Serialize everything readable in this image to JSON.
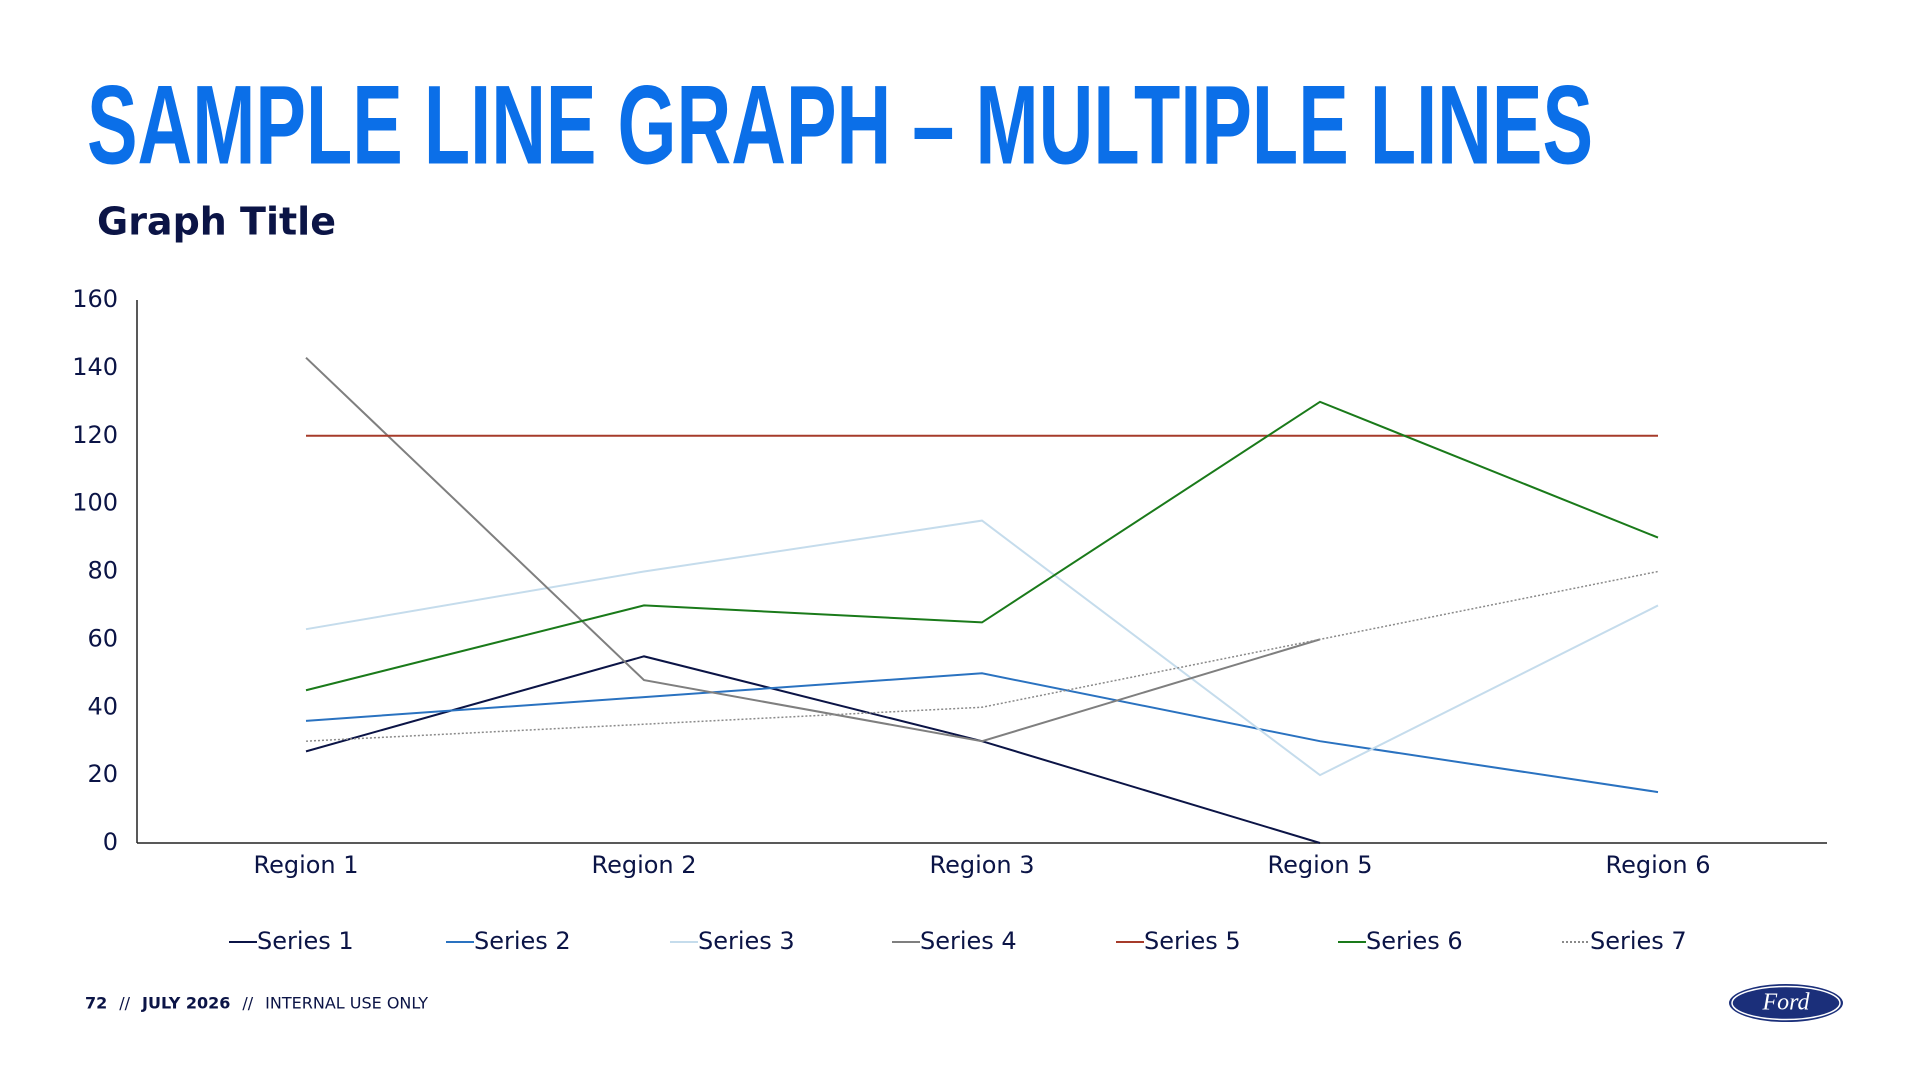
{
  "chart_data": {
    "type": "line",
    "title": "SAMPLE LINE GRAPH – MULTIPLE LINES",
    "subtitle": "Graph Title",
    "categories": [
      "Region 1",
      "Region 2",
      "Region 3",
      "Region 5",
      "Region 6"
    ],
    "series": [
      {
        "name": "Series 1",
        "color": "#0b1446",
        "dash": "solid",
        "values": [
          27,
          55,
          30,
          0,
          null
        ]
      },
      {
        "name": "Series 2",
        "color": "#2a72c0",
        "dash": "solid",
        "values": [
          36,
          43,
          50,
          30,
          15
        ]
      },
      {
        "name": "Series 3",
        "color": "#c5dcec",
        "dash": "solid",
        "values": [
          63,
          80,
          95,
          20,
          70
        ]
      },
      {
        "name": "Series 4",
        "color": "#7f7f7f",
        "dash": "solid",
        "values": [
          143,
          48,
          30,
          60,
          null
        ]
      },
      {
        "name": "Series 5",
        "color": "#a63b2a",
        "dash": "solid",
        "values": [
          120,
          120,
          120,
          120,
          120
        ]
      },
      {
        "name": "Series 6",
        "color": "#1a7a1a",
        "dash": "solid",
        "values": [
          45,
          70,
          65,
          130,
          90
        ]
      },
      {
        "name": "Series 7",
        "color": "#8a8a8a",
        "dash": "dotted",
        "values": [
          30,
          35,
          40,
          60,
          80
        ]
      }
    ],
    "ylim": [
      0,
      160
    ],
    "yticks": [
      0,
      20,
      40,
      60,
      80,
      100,
      120,
      140,
      160
    ],
    "grid": false,
    "legend": "bottom"
  },
  "footer": {
    "parts": [
      "72",
      "//",
      "JULY 2026",
      "//",
      "INTERNAL USE ONLY"
    ]
  },
  "logo": {
    "text": "Ford"
  }
}
